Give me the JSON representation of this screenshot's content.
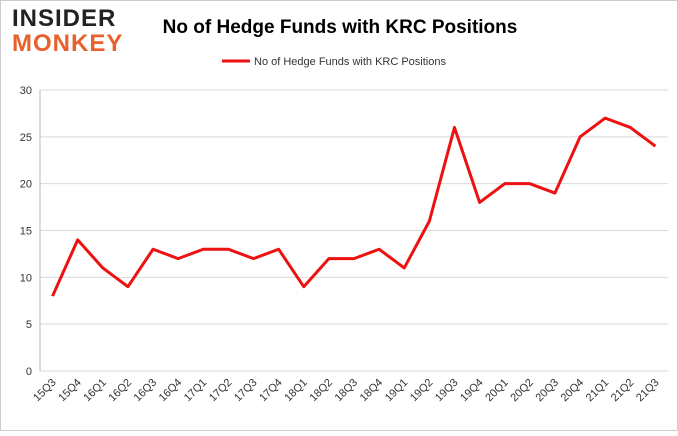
{
  "logo": {
    "line1": "INSIDER",
    "line2": "MONKEY"
  },
  "chart_data": {
    "type": "line",
    "title": "No of Hedge Funds with KRC Positions",
    "categories": [
      "15Q3",
      "15Q4",
      "16Q1",
      "16Q2",
      "16Q3",
      "16Q4",
      "17Q1",
      "17Q2",
      "17Q3",
      "17Q4",
      "18Q1",
      "18Q2",
      "18Q3",
      "18Q4",
      "19Q1",
      "19Q2",
      "19Q3",
      "19Q4",
      "20Q1",
      "20Q2",
      "20Q3",
      "20Q4",
      "21Q1",
      "21Q2",
      "21Q3"
    ],
    "series": [
      {
        "name": "No of Hedge Funds with KRC Positions",
        "color": "#ee1111",
        "values": [
          8,
          14,
          11,
          9,
          13,
          12,
          13,
          13,
          12,
          13,
          9,
          12,
          12,
          13,
          11,
          16,
          26,
          18,
          20,
          20,
          19,
          25,
          27,
          26,
          24
        ]
      }
    ],
    "ylim": [
      0,
      30
    ],
    "yticks": [
      0,
      5,
      10,
      15,
      20,
      25,
      30
    ],
    "grid": true,
    "legend": "top"
  }
}
